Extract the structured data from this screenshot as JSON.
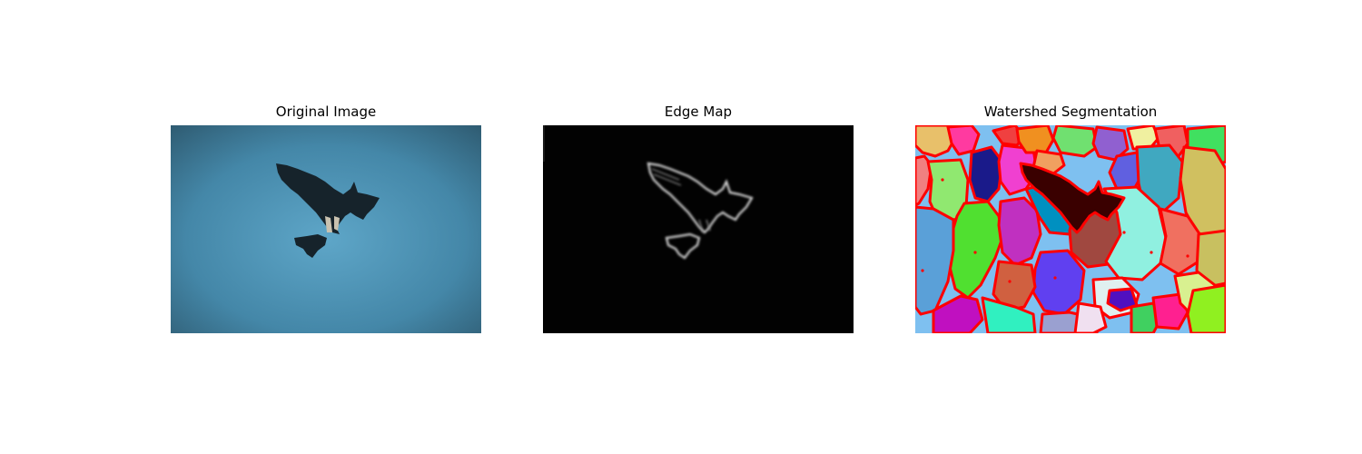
{
  "figure": {
    "panels": [
      {
        "title": "Original Image"
      },
      {
        "title": "Edge Map"
      },
      {
        "title": "Watershed Segmentation"
      }
    ]
  },
  "colors": {
    "sky_center": "#5ea6c8",
    "sky_edge": "#2e5a70",
    "bird": "#16232b",
    "edge_background": "#000000",
    "edge_line": "#d8d8d8",
    "segmentation_boundary": "#ff0000",
    "segmentation_background": "#7ec0f0",
    "bird_segment": "#3a0000"
  }
}
